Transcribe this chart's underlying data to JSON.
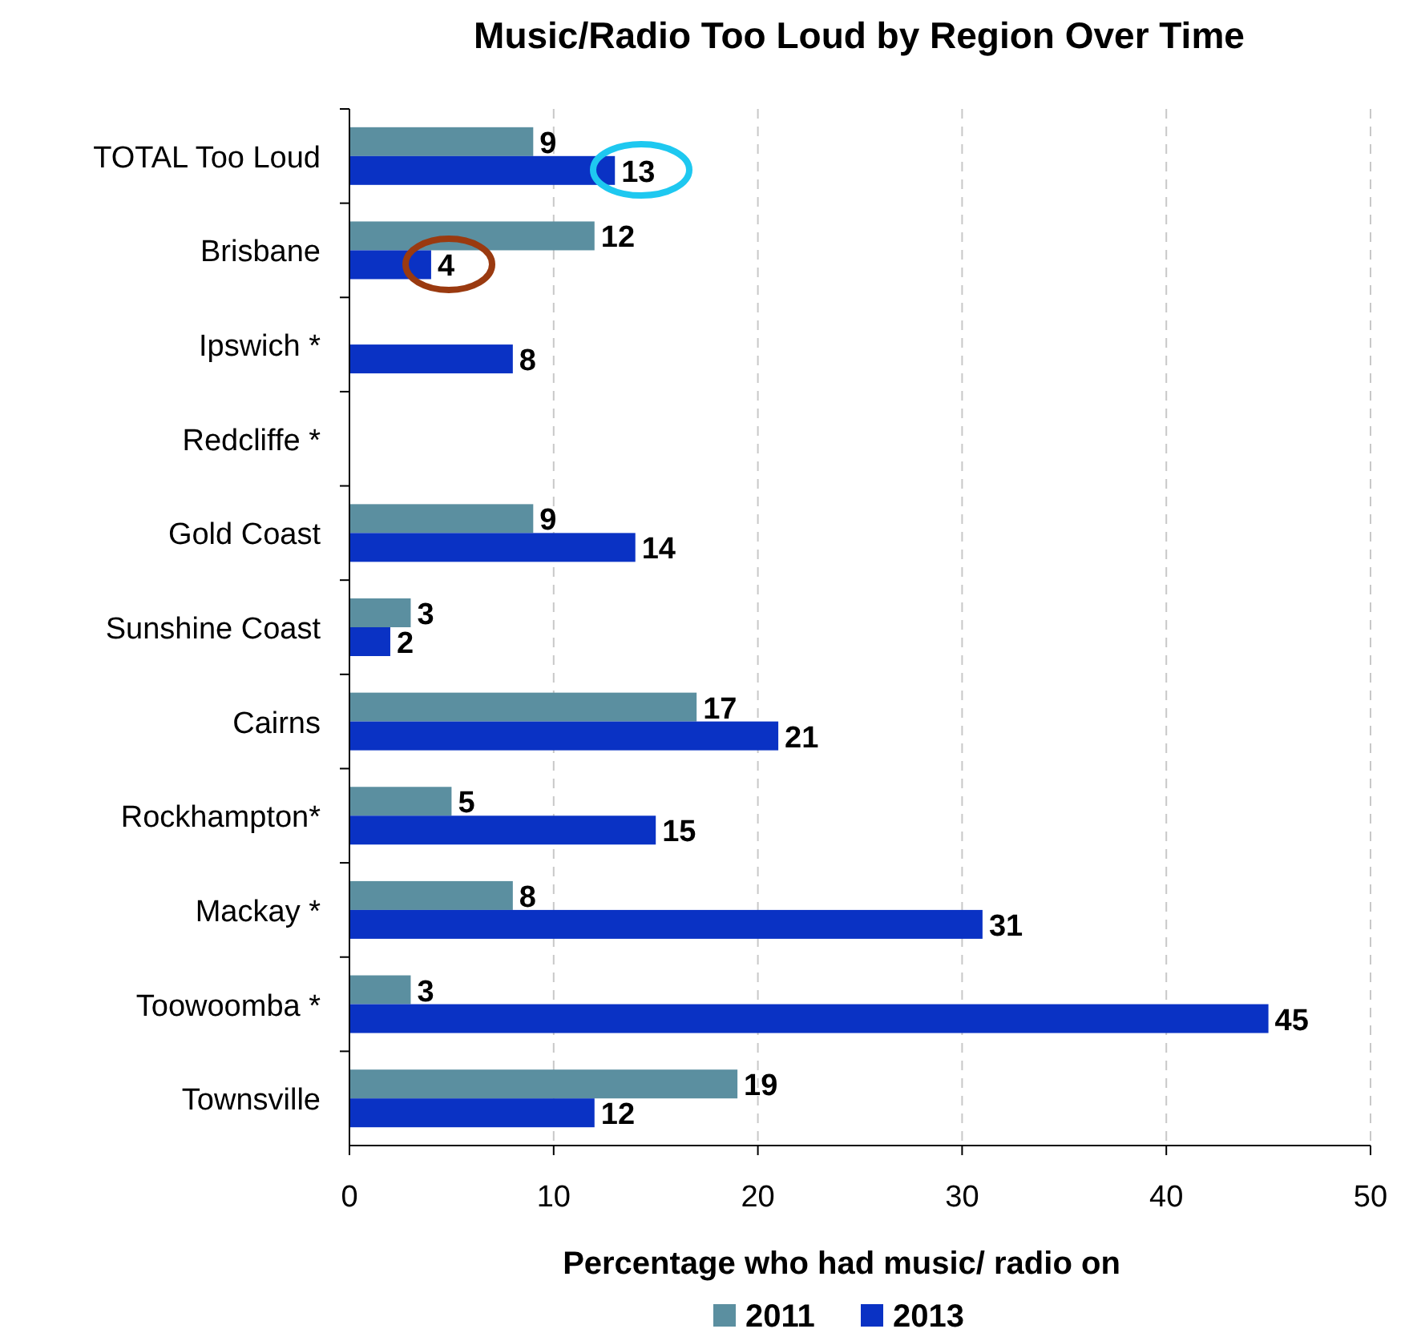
{
  "chart_data": {
    "type": "bar",
    "orientation": "horizontal",
    "title": "Music/Radio Too Loud by Region Over Time",
    "xlabel": "Percentage who had music/ radio on",
    "categories": [
      "TOTAL Too Loud",
      "Brisbane",
      "Ipswich *",
      "Redcliffe *",
      "Gold Coast",
      "Sunshine Coast",
      "Cairns",
      "Rockhampton*",
      "Mackay *",
      "Toowoomba *",
      "Townsville"
    ],
    "series": [
      {
        "name": "2011",
        "color": "#5b8fa0",
        "values": [
          9,
          12,
          null,
          null,
          9,
          3,
          17,
          5,
          8,
          3,
          19
        ]
      },
      {
        "name": "2013",
        "color": "#0a32c4",
        "values": [
          13,
          4,
          8,
          null,
          14,
          2,
          21,
          15,
          31,
          45,
          12
        ]
      }
    ],
    "xlim": [
      0,
      50
    ],
    "xticks": [
      0,
      10,
      20,
      30,
      40,
      50
    ],
    "grid": "x",
    "legend": "bottom",
    "data_labels": true
  }
}
